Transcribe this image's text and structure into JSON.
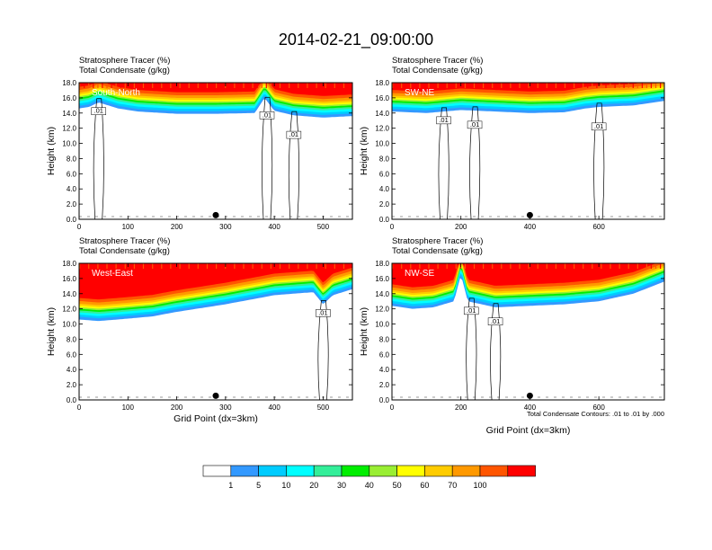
{
  "title": "2014-02-21_09:00:00",
  "colors": {
    "contour": "#000000",
    "white": "#ffffff",
    "bins": [
      "#ffffff",
      "#3399ff",
      "#00ccff",
      "#00ffff",
      "#33ee99",
      "#00ee00",
      "#99ee33",
      "#ffff00",
      "#ffcc00",
      "#ff9900",
      "#ff5500",
      "#ff0000"
    ]
  },
  "chart_data": [
    {
      "type": "heatmap",
      "panel_label": "South-North",
      "subtitle_lines": [
        "Stratosphere Tracer   (%)",
        "Total Condensate   (g/kg)"
      ],
      "xlabel": "",
      "ylabel": "Height (km)",
      "xlim": [
        0,
        560
      ],
      "ylim": [
        0,
        18
      ],
      "xticks": [
        0,
        100,
        200,
        300,
        400,
        500
      ],
      "yticks": [
        0,
        2,
        4,
        6,
        8,
        10,
        12,
        14,
        16,
        18
      ],
      "tracer_profile": {
        "x": [
          0,
          20,
          40,
          80,
          120,
          200,
          280,
          360,
          380,
          400,
          440,
          500,
          560
        ],
        "base_km": [
          14.6,
          14.8,
          15.4,
          14.6,
          14.2,
          13.9,
          13.9,
          14.0,
          16.0,
          14.3,
          13.7,
          13.4,
          13.6
        ]
      },
      "condensate_label": ".01",
      "marker_x": 280,
      "contour_labels_x": [
        40,
        385,
        440
      ]
    },
    {
      "type": "heatmap",
      "panel_label": "SW-NE",
      "subtitle_lines": [
        "Stratosphere Tracer   (%)",
        "Total Condensate   (g/kg)"
      ],
      "xlabel": "",
      "ylabel": "Height (km)",
      "xlim": [
        0,
        790
      ],
      "ylim": [
        0,
        18
      ],
      "xticks": [
        0,
        200,
        400,
        600
      ],
      "yticks": [
        0,
        2,
        4,
        6,
        8,
        10,
        12,
        14,
        16,
        18
      ],
      "tracer_profile": {
        "x": [
          0,
          100,
          200,
          300,
          400,
          500,
          560,
          600,
          700,
          790
        ],
        "base_km": [
          14.2,
          14.0,
          14.4,
          14.2,
          14.0,
          14.1,
          14.6,
          14.8,
          15.0,
          15.6
        ]
      },
      "condensate_label": ".01",
      "marker_x": 400,
      "contour_labels_x": [
        150,
        240,
        600
      ]
    },
    {
      "type": "heatmap",
      "panel_label": "West-East",
      "subtitle_lines": [
        "Stratosphere Tracer   (%)",
        "Total Condensate   (g/kg)"
      ],
      "xlabel": "Grid Point (dx=3km)",
      "ylabel": "Height (km)",
      "xlim": [
        0,
        560
      ],
      "ylim": [
        0,
        18
      ],
      "xticks": [
        0,
        100,
        200,
        300,
        400,
        500
      ],
      "yticks": [
        0,
        2,
        4,
        6,
        8,
        10,
        12,
        14,
        16,
        18
      ],
      "tracer_profile": {
        "x": [
          0,
          40,
          80,
          150,
          200,
          300,
          400,
          480,
          500,
          520,
          560
        ],
        "base_km": [
          10.6,
          10.4,
          10.6,
          11.0,
          11.6,
          12.6,
          13.8,
          14.2,
          12.6,
          13.8,
          14.6
        ]
      },
      "condensate_label": ".01",
      "marker_x": 280,
      "contour_labels_x": [
        500
      ]
    },
    {
      "type": "heatmap",
      "panel_label": "NW-SE",
      "subtitle_lines": [
        "Stratosphere Tracer   (%)",
        "Total Condensate   (g/kg)"
      ],
      "xlabel": "Grid Point (dx=3km)",
      "ylabel": "Height (km)",
      "xlim": [
        0,
        790
      ],
      "ylim": [
        0,
        18
      ],
      "xticks": [
        0,
        200,
        400,
        600
      ],
      "yticks": [
        0,
        2,
        4,
        6,
        8,
        10,
        12,
        14,
        16,
        18
      ],
      "tracer_profile": {
        "x": [
          0,
          60,
          120,
          180,
          200,
          220,
          300,
          400,
          500,
          600,
          700,
          790
        ],
        "base_km": [
          12.4,
          12.0,
          12.2,
          13.0,
          16.5,
          13.0,
          12.2,
          12.4,
          12.6,
          13.0,
          14.0,
          15.6
        ]
      },
      "condensate_label": ".01",
      "marker_x": 400,
      "contour_labels_x": [
        230,
        300
      ]
    }
  ],
  "note": "Total Condensate Contours: .01 to .01 by .000",
  "colorbar": {
    "labels": [
      "1",
      "5",
      "10",
      "20",
      "30",
      "40",
      "50",
      "60",
      "70",
      "100"
    ]
  }
}
